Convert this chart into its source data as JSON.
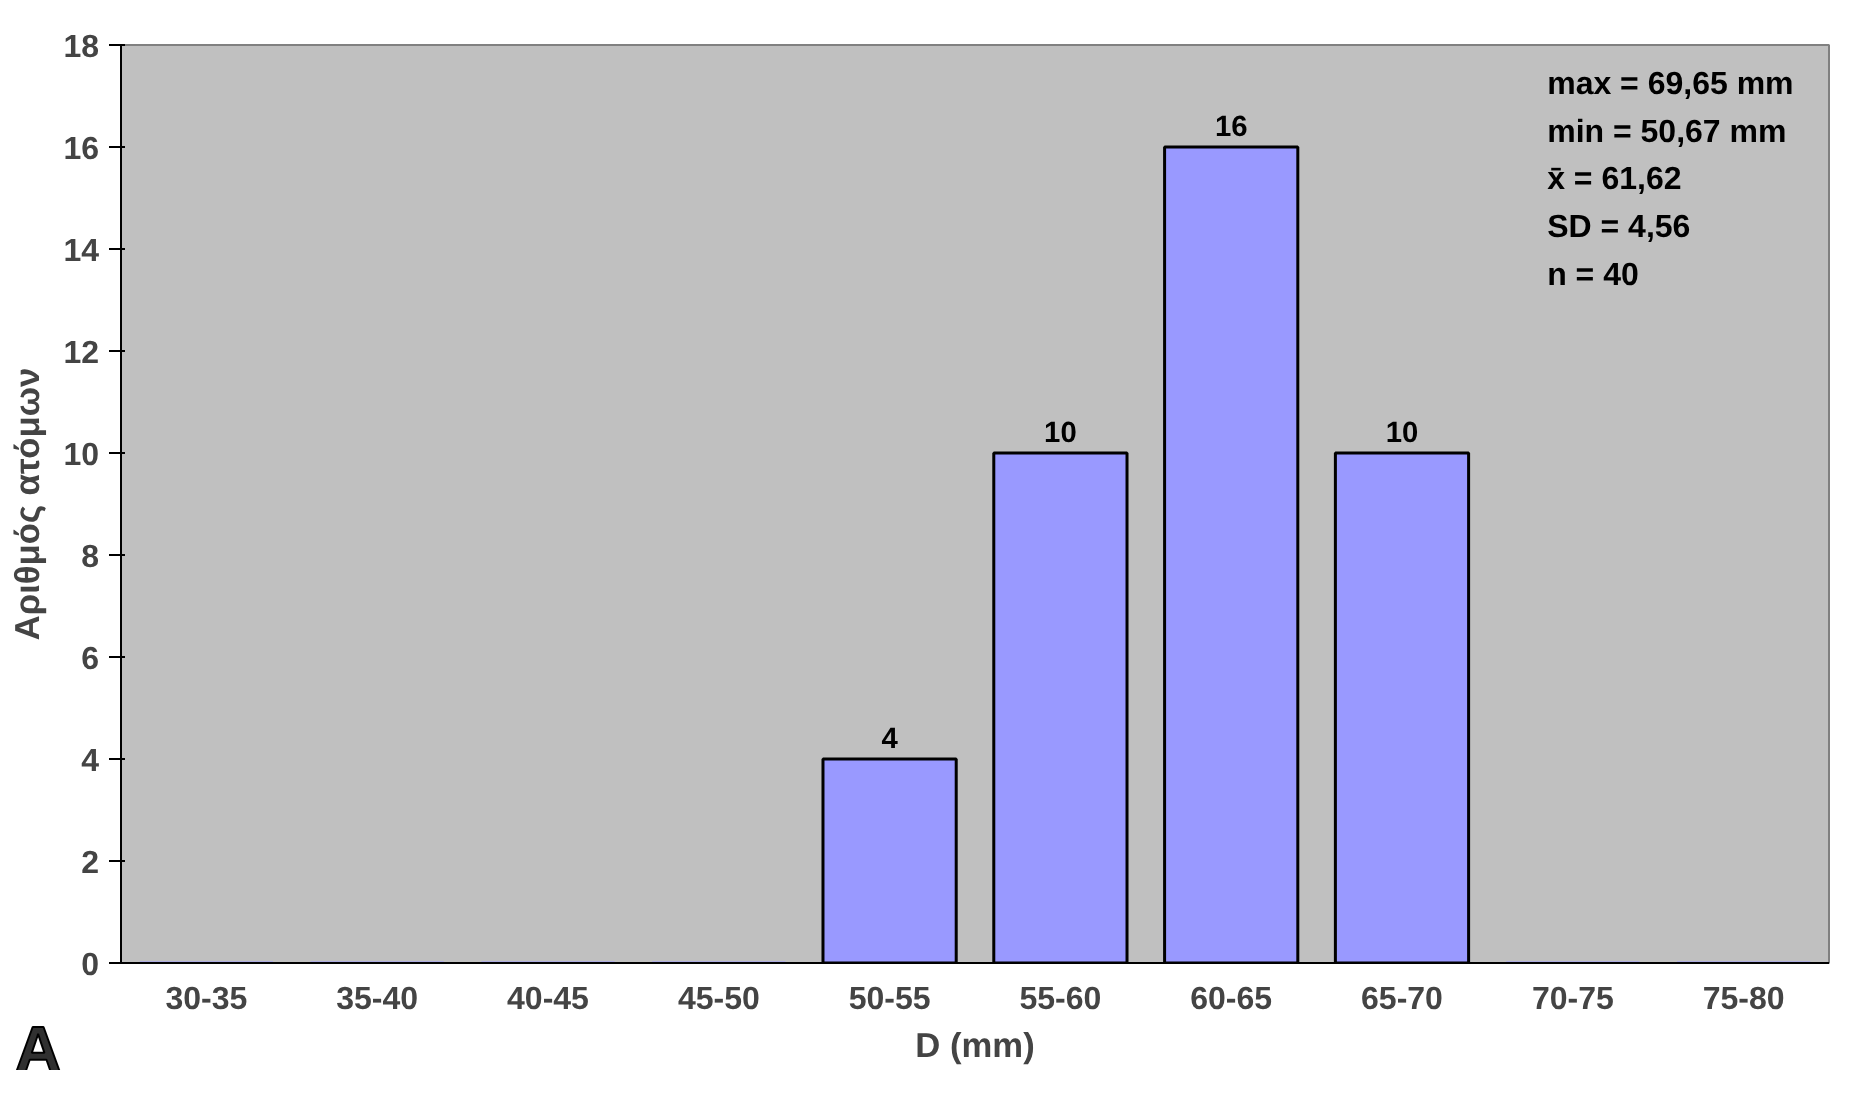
{
  "chart_data": {
    "type": "bar",
    "xlabel": "D (mm)",
    "ylabel": "Αριθμός ατόμων",
    "categories": [
      "30-35",
      "35-40",
      "40-45",
      "45-50",
      "50-55",
      "55-60",
      "60-65",
      "65-70",
      "70-75",
      "75-80"
    ],
    "values": [
      0,
      0,
      0,
      0,
      4,
      10,
      16,
      10,
      0,
      0
    ],
    "value_labels": [
      null,
      null,
      null,
      null,
      "4",
      "10",
      "16",
      "10",
      null,
      null
    ],
    "color": "#9999ff",
    "ylim": [
      0,
      18
    ],
    "yticks": [
      0,
      2,
      4,
      6,
      8,
      10,
      12,
      14,
      16,
      18
    ],
    "grid": false,
    "annotations": [
      "max = 69,65 mm",
      "min = 50,67 mm",
      "x̄ = 61,62",
      "SD = 4,56",
      "n = 40",
      "A"
    ]
  }
}
